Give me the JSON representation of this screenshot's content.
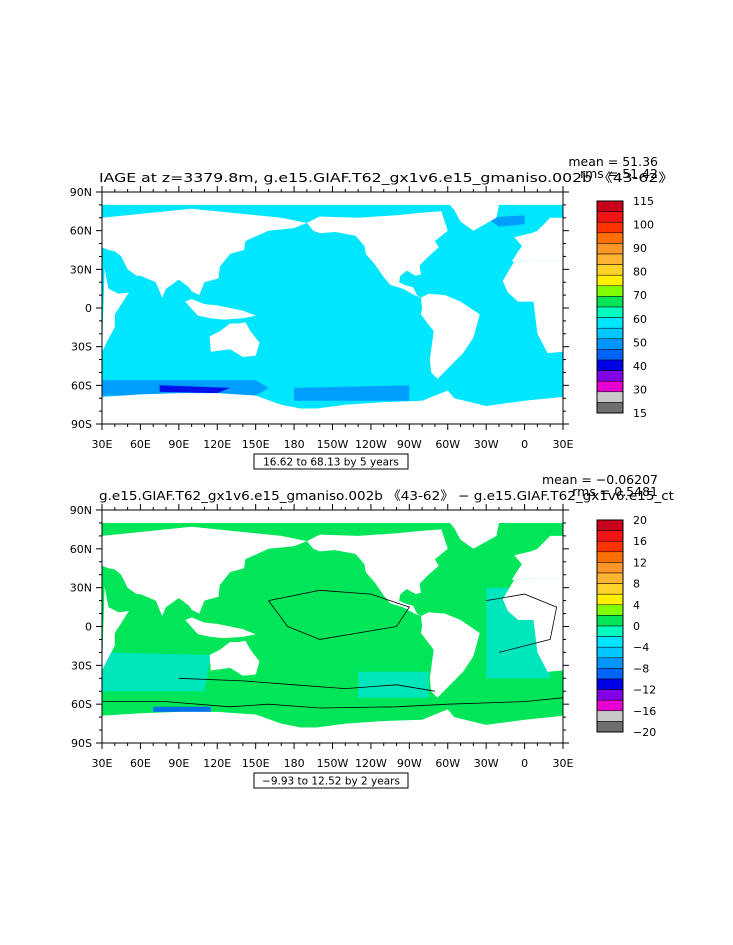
{
  "chart_data": [
    {
      "type": "heatmap",
      "title": "IAGE at z=3379.8m, g.e15.GIAF.T62_gx1v6.e15_gmaniso.002b 《43-62》",
      "stats": {
        "mean_label": "mean = 51.36",
        "rms_label": "rms = 51.42"
      },
      "xticks": [
        "30E",
        "60E",
        "90E",
        "120E",
        "150E",
        "180",
        "150W",
        "120W",
        "90W",
        "60W",
        "30W",
        "0",
        "30E"
      ],
      "yticks": [
        "90N",
        "60N",
        "30N",
        "0",
        "30S",
        "60S",
        "90S"
      ],
      "xlim": [
        30,
        390
      ],
      "ylim": [
        -90,
        90
      ],
      "contour_label": "16.62 to 68.13 by 5 years",
      "colorbar": {
        "labels": [
          "115",
          "100",
          "90",
          "80",
          "70",
          "60",
          "50",
          "40",
          "30",
          "15"
        ],
        "colors": [
          "#c8001c",
          "#f01414",
          "#ff3200",
          "#ff6e00",
          "#ff9628",
          "#ffb432",
          "#ffd228",
          "#fff000",
          "#80ff00",
          "#00e658",
          "#00ffbe",
          "#00e6ff",
          "#00c8ff",
          "#0096ff",
          "#0064ff",
          "#0000e6",
          "#8200e6",
          "#e600d2",
          "#c8c8c8",
          "#6e6e6e"
        ]
      },
      "fields": {
        "dominant_color": "#00e6ff",
        "accent_color": "#0096ff",
        "extreme_color": "#0000e6"
      }
    },
    {
      "type": "heatmap",
      "title": "g.e15.GIAF.T62_gx1v6.e15_gmaniso.002b 《43-62》 − g.e15.GIAF.T62_gx1v6.e15_ct",
      "stats": {
        "mean_label": "mean = −0.06207",
        "rms_label": "rms = 0.5481"
      },
      "xticks": [
        "30E",
        "60E",
        "90E",
        "120E",
        "150E",
        "180",
        "150W",
        "120W",
        "90W",
        "60W",
        "30W",
        "0",
        "30E"
      ],
      "yticks": [
        "90N",
        "60N",
        "30N",
        "0",
        "30S",
        "60S",
        "90S"
      ],
      "xlim": [
        30,
        390
      ],
      "ylim": [
        -90,
        90
      ],
      "contour_label": "−9.93 to 12.52 by 2 years",
      "colorbar": {
        "labels": [
          "20",
          "16",
          "12",
          "8",
          "4",
          "0",
          "−4",
          "−8",
          "−12",
          "−16",
          "−20"
        ],
        "colors": [
          "#c8001c",
          "#f01414",
          "#ff3200",
          "#ff6e00",
          "#ff9628",
          "#ffb432",
          "#ffd228",
          "#fff000",
          "#80ff00",
          "#00e658",
          "#00ffbe",
          "#00e6ff",
          "#00c8ff",
          "#0096ff",
          "#0064ff",
          "#0000e6",
          "#8200e6",
          "#e600d2",
          "#c8c8c8",
          "#6e6e6e"
        ]
      },
      "fields": {
        "dominant_color": "#00e658",
        "accent_color": "#00e6c8",
        "extreme_color": "#0064ff"
      }
    }
  ]
}
